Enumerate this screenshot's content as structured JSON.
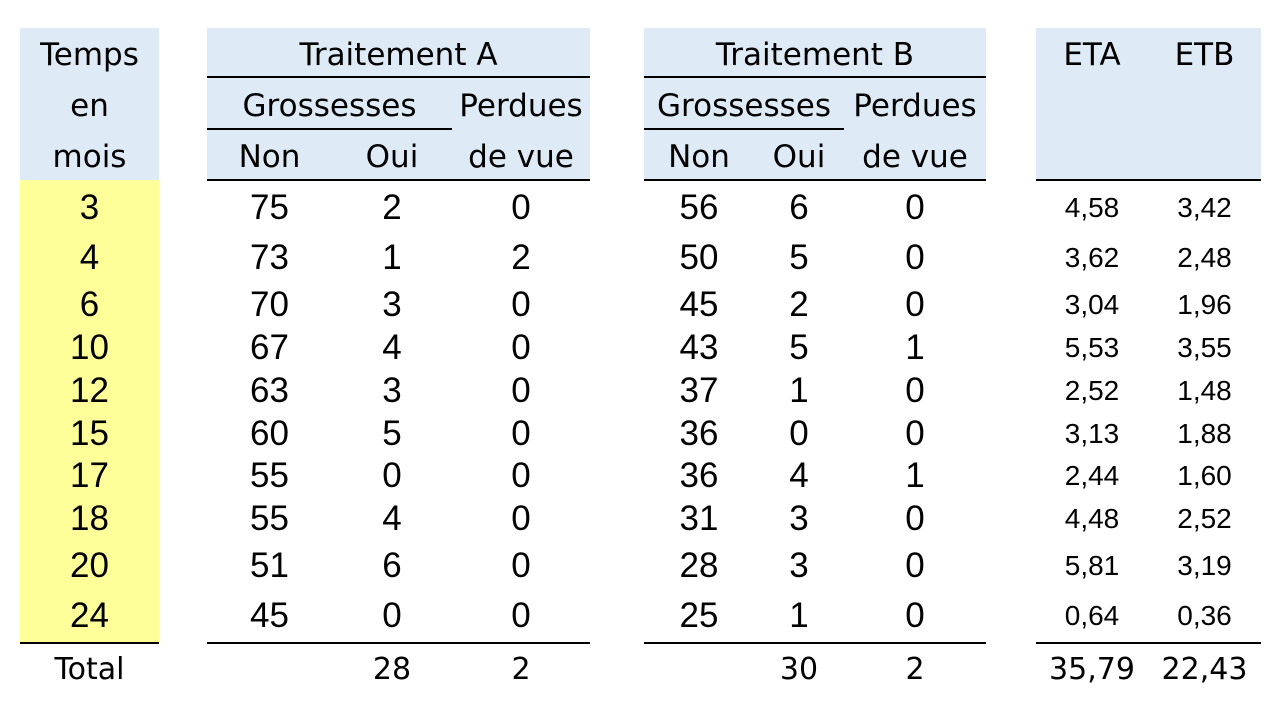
{
  "header": {
    "temps": [
      "Temps",
      "en",
      "mois"
    ],
    "group_a": "Traitement A",
    "group_b": "Traitement B",
    "grossesses": "Grossesses",
    "perdues": [
      "Perdues",
      "de vue"
    ],
    "non": "Non",
    "oui": "Oui",
    "eta": "ETA",
    "etb": "ETB"
  },
  "rows": [
    {
      "temps": "3",
      "a_non": "75",
      "a_oui": "2",
      "a_perdues": "0",
      "b_non": "56",
      "b_oui": "6",
      "b_perdues": "0",
      "eta": "4,58",
      "etb": "3,42"
    },
    {
      "temps": "4",
      "a_non": "73",
      "a_oui": "1",
      "a_perdues": "2",
      "b_non": "50",
      "b_oui": "5",
      "b_perdues": "0",
      "eta": "3,62",
      "etb": "2,48"
    },
    {
      "temps": "6",
      "a_non": "70",
      "a_oui": "3",
      "a_perdues": "0",
      "b_non": "45",
      "b_oui": "2",
      "b_perdues": "0",
      "eta": "3,04",
      "etb": "1,96"
    },
    {
      "temps": "10",
      "a_non": "67",
      "a_oui": "4",
      "a_perdues": "0",
      "b_non": "43",
      "b_oui": "5",
      "b_perdues": "1",
      "eta": "5,53",
      "etb": "3,55"
    },
    {
      "temps": "12",
      "a_non": "63",
      "a_oui": "3",
      "a_perdues": "0",
      "b_non": "37",
      "b_oui": "1",
      "b_perdues": "0",
      "eta": "2,52",
      "etb": "1,48"
    },
    {
      "temps": "15",
      "a_non": "60",
      "a_oui": "5",
      "a_perdues": "0",
      "b_non": "36",
      "b_oui": "0",
      "b_perdues": "0",
      "eta": "3,13",
      "etb": "1,88"
    },
    {
      "temps": "17",
      "a_non": "55",
      "a_oui": "0",
      "a_perdues": "0",
      "b_non": "36",
      "b_oui": "4",
      "b_perdues": "1",
      "eta": "2,44",
      "etb": "1,60"
    },
    {
      "temps": "18",
      "a_non": "55",
      "a_oui": "4",
      "a_perdues": "0",
      "b_non": "31",
      "b_oui": "3",
      "b_perdues": "0",
      "eta": "4,48",
      "etb": "2,52"
    },
    {
      "temps": "20",
      "a_non": "51",
      "a_oui": "6",
      "a_perdues": "0",
      "b_non": "28",
      "b_oui": "3",
      "b_perdues": "0",
      "eta": "5,81",
      "etb": "3,19"
    },
    {
      "temps": "24",
      "a_non": "45",
      "a_oui": "0",
      "a_perdues": "0",
      "b_non": "25",
      "b_oui": "1",
      "b_perdues": "0",
      "eta": "0,64",
      "etb": "0,36"
    }
  ],
  "total": {
    "label": "Total",
    "a_oui": "28",
    "a_perdues": "2",
    "b_oui": "30",
    "b_perdues": "2",
    "eta": "35,79",
    "etb": "22,43"
  },
  "colors": {
    "header_bg": "#deebf7",
    "temps_bg": "#ffff99"
  }
}
